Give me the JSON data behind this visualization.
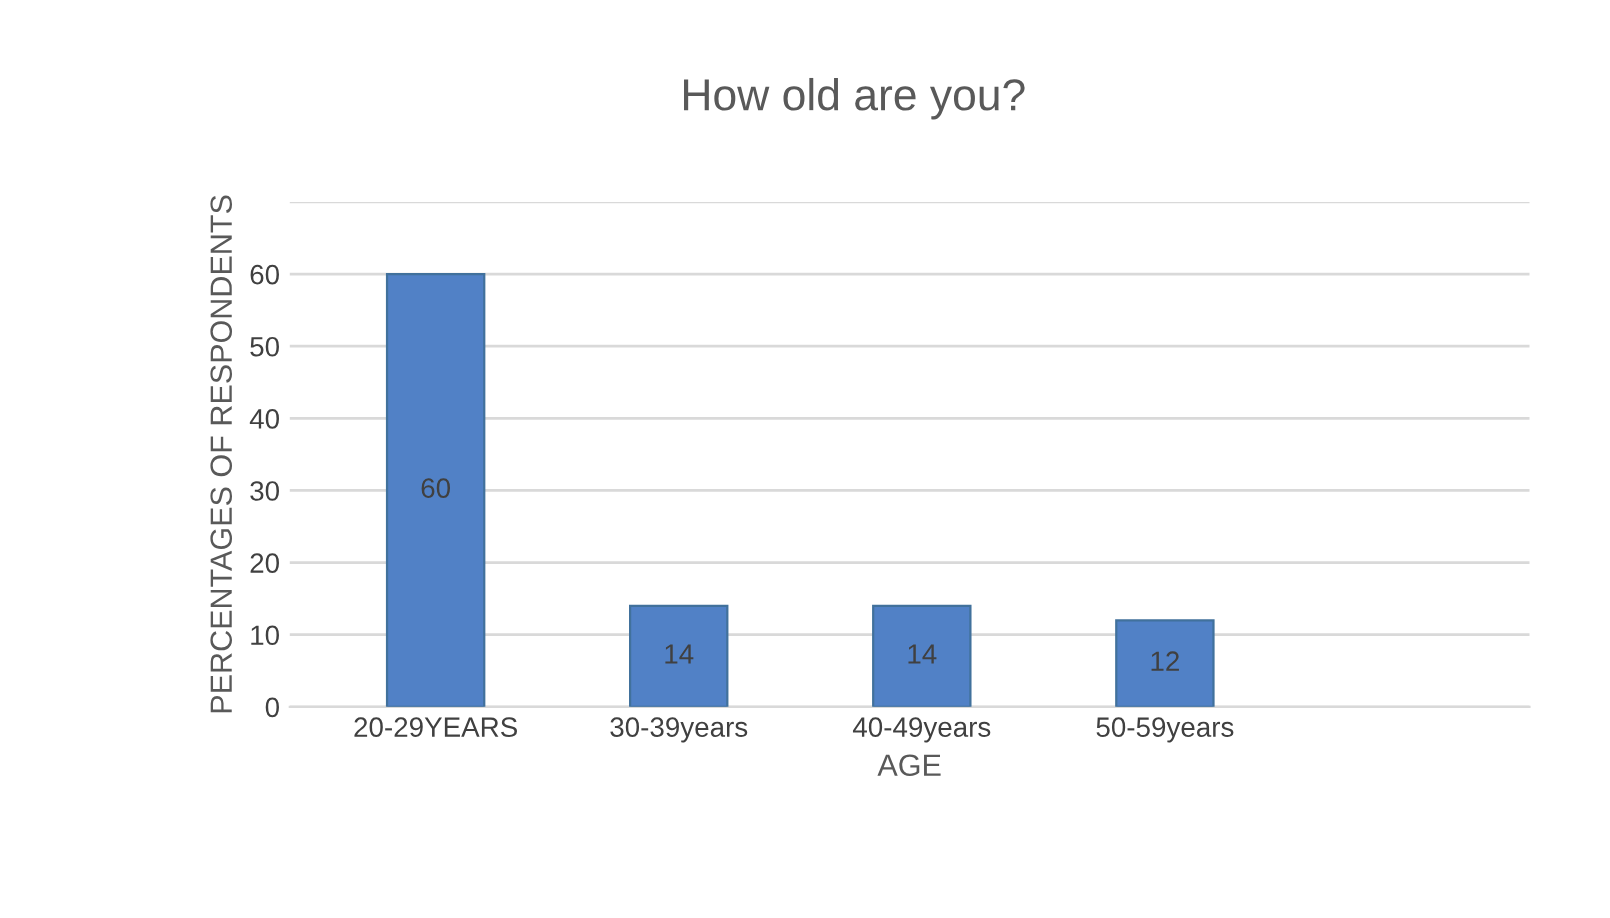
{
  "chart_data": {
    "type": "bar",
    "title": "How old are you?",
    "xlabel": "AGE",
    "ylabel": "PERCENTAGES OF RESPONDENTS",
    "categories": [
      "20-29YEARS",
      "30-39years",
      "40-49years",
      "50-59years",
      null
    ],
    "values": [
      60,
      14,
      14,
      12,
      null
    ],
    "color": "#5181c6",
    "ylim": [
      0,
      70
    ],
    "yticks": [
      0,
      10,
      20,
      30,
      40,
      50,
      60,
      {
        "value": 70,
        "label": null
      }
    ],
    "grid": "y",
    "data_labels": true
  }
}
